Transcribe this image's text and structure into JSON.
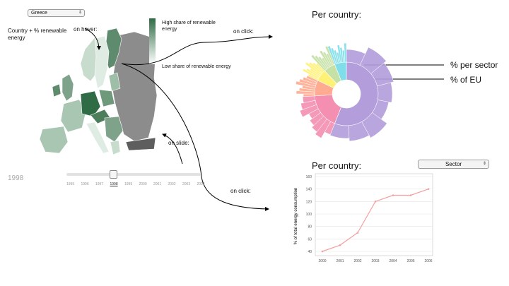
{
  "country_select": {
    "value": "Greece"
  },
  "hover_label": "Country + % renewable energy",
  "on_hover": "on hover:",
  "legend": {
    "high": "High share of renewable energy",
    "low": "Low share of renewable energy"
  },
  "on_click_1": "on click:",
  "on_click_2": "on click:",
  "on_slide": "on slide:",
  "year_big": "1998",
  "slider": {
    "years": [
      "1995",
      "1996",
      "1997",
      "1998",
      "1999",
      "2000",
      "2001",
      "2002",
      "2003",
      "2004"
    ],
    "selected": "1998"
  },
  "sunburst": {
    "title": "Per country:",
    "label_sector": "% per sector",
    "label_eu": "% of EU"
  },
  "line_panel": {
    "title": "Per country:",
    "sector_select": "Sector"
  },
  "chart_data": {
    "type": "line",
    "x": [
      "2000",
      "2001",
      "2002",
      "2003",
      "2004",
      "2005",
      "2006"
    ],
    "series": [
      {
        "values": [
          40,
          50,
          70,
          120,
          130,
          130,
          140
        ]
      }
    ],
    "ylabel": "% of total energy consumption",
    "ylim": [
      40,
      160
    ],
    "yticks": [
      40,
      60,
      80,
      100,
      120,
      140,
      160
    ],
    "grid": true,
    "line_color": "#f4a0a0"
  }
}
